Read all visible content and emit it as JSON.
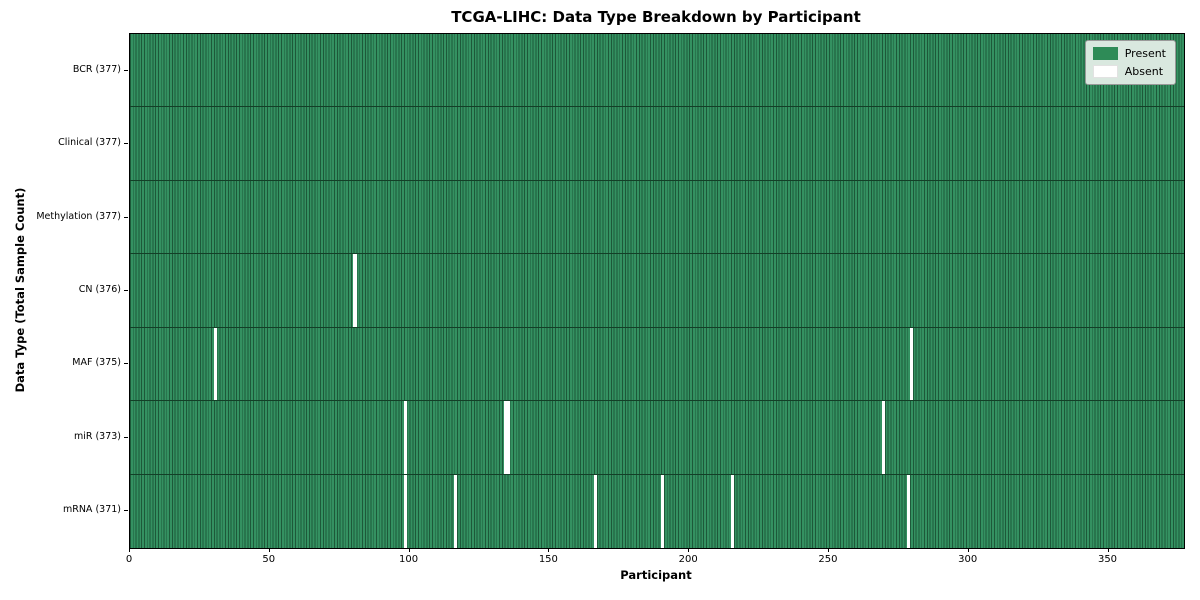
{
  "chart_data": {
    "type": "heatmap",
    "title": "TCGA-LIHC: Data Type Breakdown by Participant",
    "xlabel": "Participant",
    "ylabel": "Data Type (Total Sample Count)",
    "xlim": [
      0,
      377
    ],
    "x_ticks": [
      0,
      50,
      100,
      150,
      200,
      250,
      300,
      350
    ],
    "n_participants": 377,
    "grid": false,
    "legend_position": "upper right",
    "legend": [
      {
        "label": "Present",
        "value": 1,
        "color": "#2e8b57"
      },
      {
        "label": "Absent",
        "value": 0,
        "color": "#ffffff"
      }
    ],
    "rows": [
      {
        "label": "BCR (377)",
        "data_type": "BCR",
        "present_count": 377,
        "absent_participants": []
      },
      {
        "label": "Clinical (377)",
        "data_type": "Clinical",
        "present_count": 377,
        "absent_participants": []
      },
      {
        "label": "Methylation (377)",
        "data_type": "Methylation",
        "present_count": 377,
        "absent_participants": []
      },
      {
        "label": "CN (376)",
        "data_type": "CN",
        "present_count": 376,
        "absent_participants": [
          80
        ]
      },
      {
        "label": "MAF (375)",
        "data_type": "MAF",
        "present_count": 375,
        "absent_participants": [
          30,
          279
        ]
      },
      {
        "label": "miR (373)",
        "data_type": "miR",
        "present_count": 373,
        "absent_participants": [
          98,
          134,
          135,
          269
        ]
      },
      {
        "label": "mRNA (371)",
        "data_type": "mRNA",
        "present_count": 371,
        "absent_participants": [
          98,
          116,
          166,
          190,
          215,
          278
        ]
      }
    ],
    "colors": {
      "present": "#2e8b57",
      "absent": "#ffffff",
      "cell_edge": "#1d5939",
      "row_separator": "#133f27",
      "spine": "#000000",
      "legend_background": "#d9e8df",
      "legend_border": "#999999"
    }
  }
}
